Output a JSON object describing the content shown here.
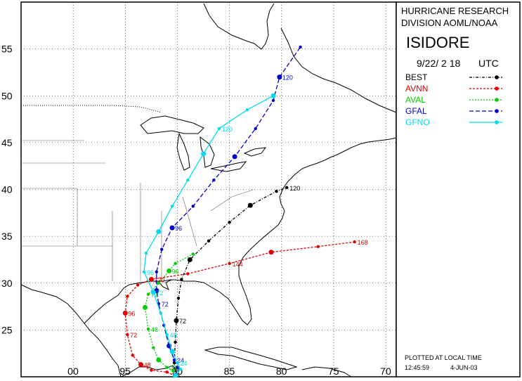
{
  "header": {
    "org_line1": "HURRICANE RESEARCH",
    "org_line2": "DIVISION AOML/NOAA",
    "storm_name": "ISIDORE",
    "date_label": "9/22/ 2 18",
    "tz_label": "UTC"
  },
  "legend": [
    {
      "name": "BEST",
      "color": "#000000",
      "dash": "4,2,1,2"
    },
    {
      "name": "AVNN",
      "color": "#e00000",
      "dash": "3,2"
    },
    {
      "name": "AVAL",
      "color": "#00cc00",
      "dash": "2,2"
    },
    {
      "name": "GFAL",
      "color": "#0000cc",
      "dash": "6,3"
    },
    {
      "name": "GFNO",
      "color": "#00ddee",
      "dash": ""
    }
  ],
  "footer": {
    "plotted_label": "PLOTTED AT LOCAL TIME",
    "time_stamp": "12:45:59",
    "date_stamp": "4-JUN-03"
  },
  "axes": {
    "lat_ticks": [
      "25",
      "30",
      "35",
      "40",
      "45",
      "50",
      "55"
    ],
    "lon_ticks": [
      "00",
      "95",
      "90",
      "85",
      "80",
      "75",
      "70"
    ],
    "lat_range": [
      20,
      60
    ],
    "lon_range": [
      -105,
      -69
    ]
  },
  "chart_data": {
    "type": "track-map",
    "tracks": [
      {
        "name": "BEST",
        "points": [
          [
            -90.2,
            20.1
          ],
          [
            -90.3,
            21.5
          ],
          [
            -90.2,
            23.7
          ],
          [
            -90.1,
            26.0
          ],
          [
            -89.9,
            28.4
          ],
          [
            -89.6,
            30.4
          ],
          [
            -88.8,
            32.5
          ],
          [
            -87.0,
            34.5
          ],
          [
            -85.0,
            36.5
          ],
          [
            -83.0,
            38.3
          ],
          [
            -80.5,
            39.8
          ],
          [
            -79.5,
            40.2
          ]
        ],
        "labels": [
          {
            "at": 3,
            "text": "72"
          },
          {
            "at": 11,
            "text": "120"
          }
        ]
      },
      {
        "name": "AVNN",
        "points": [
          [
            -90.2,
            20.1
          ],
          [
            -91.0,
            20.5
          ],
          [
            -92.5,
            20.7
          ],
          [
            -93.5,
            21.3
          ],
          [
            -94.3,
            22.3
          ],
          [
            -94.8,
            24.5
          ],
          [
            -95.0,
            26.8
          ],
          [
            -94.8,
            28.6
          ],
          [
            -93.8,
            29.8
          ],
          [
            -92.5,
            30.4
          ],
          [
            -89.0,
            31.0
          ],
          [
            -85.0,
            32.1
          ],
          [
            -81.0,
            33.3
          ],
          [
            -76.5,
            33.9
          ],
          [
            -73.0,
            34.4
          ]
        ],
        "labels": [
          {
            "at": 3,
            "text": "48"
          },
          {
            "at": 5,
            "text": "72"
          },
          {
            "at": 6,
            "text": "96"
          },
          {
            "at": 9,
            "text": "120"
          },
          {
            "at": 11,
            "text": "144"
          },
          {
            "at": 14,
            "text": "168"
          }
        ]
      },
      {
        "name": "AVAL",
        "points": [
          [
            -90.2,
            20.1
          ],
          [
            -90.4,
            20.6
          ],
          [
            -91.0,
            21.0
          ],
          [
            -91.8,
            21.8
          ],
          [
            -92.3,
            23.1
          ],
          [
            -92.8,
            25.1
          ],
          [
            -93.1,
            27.4
          ],
          [
            -92.8,
            28.8
          ],
          [
            -91.8,
            30.0
          ],
          [
            -90.8,
            31.3
          ],
          [
            -90.2,
            32.1
          ],
          [
            -88.5,
            33.1
          ]
        ],
        "labels": [
          {
            "at": 2,
            "text": "24"
          },
          {
            "at": 5,
            "text": "48"
          },
          {
            "at": 7,
            "text": "72"
          },
          {
            "at": 9,
            "text": "96"
          }
        ]
      },
      {
        "name": "GFAL",
        "points": [
          [
            -90.2,
            20.1
          ],
          [
            -90.0,
            21.0
          ],
          [
            -90.3,
            21.8
          ],
          [
            -90.8,
            23.3
          ],
          [
            -91.3,
            25.5
          ],
          [
            -91.8,
            27.8
          ],
          [
            -92.0,
            29.2
          ],
          [
            -92.0,
            31.2
          ],
          [
            -91.5,
            33.6
          ],
          [
            -90.5,
            35.9
          ],
          [
            -88.5,
            38.2
          ],
          [
            -86.5,
            41.0
          ],
          [
            -84.5,
            43.5
          ],
          [
            -82.5,
            46.5
          ],
          [
            -80.8,
            49.5
          ],
          [
            -80.2,
            52.0
          ],
          [
            -78.2,
            55.2
          ]
        ],
        "labels": [
          {
            "at": 2,
            "text": "24"
          },
          {
            "at": 5,
            "text": "72"
          },
          {
            "at": 9,
            "text": "96"
          },
          {
            "at": 15,
            "text": "120"
          }
        ]
      },
      {
        "name": "GFNO",
        "points": [
          [
            -90.2,
            20.1
          ],
          [
            -89.7,
            20.8
          ],
          [
            -90.0,
            21.5
          ],
          [
            -90.5,
            22.7
          ],
          [
            -91.0,
            24.5
          ],
          [
            -91.6,
            26.8
          ],
          [
            -92.3,
            29.0
          ],
          [
            -93.2,
            31.2
          ],
          [
            -93.0,
            33.2
          ],
          [
            -91.8,
            35.5
          ],
          [
            -90.5,
            38.2
          ],
          [
            -89.0,
            41.0
          ],
          [
            -87.5,
            43.8
          ],
          [
            -86.0,
            46.5
          ],
          [
            -83.3,
            48.5
          ],
          [
            -80.8,
            50.0
          ]
        ],
        "labels": [
          {
            "at": 2,
            "text": "24"
          },
          {
            "at": 4,
            "text": "48"
          },
          {
            "at": 6,
            "text": "72"
          },
          {
            "at": 7,
            "text": "96"
          },
          {
            "at": 13,
            "text": "120"
          }
        ]
      }
    ]
  }
}
